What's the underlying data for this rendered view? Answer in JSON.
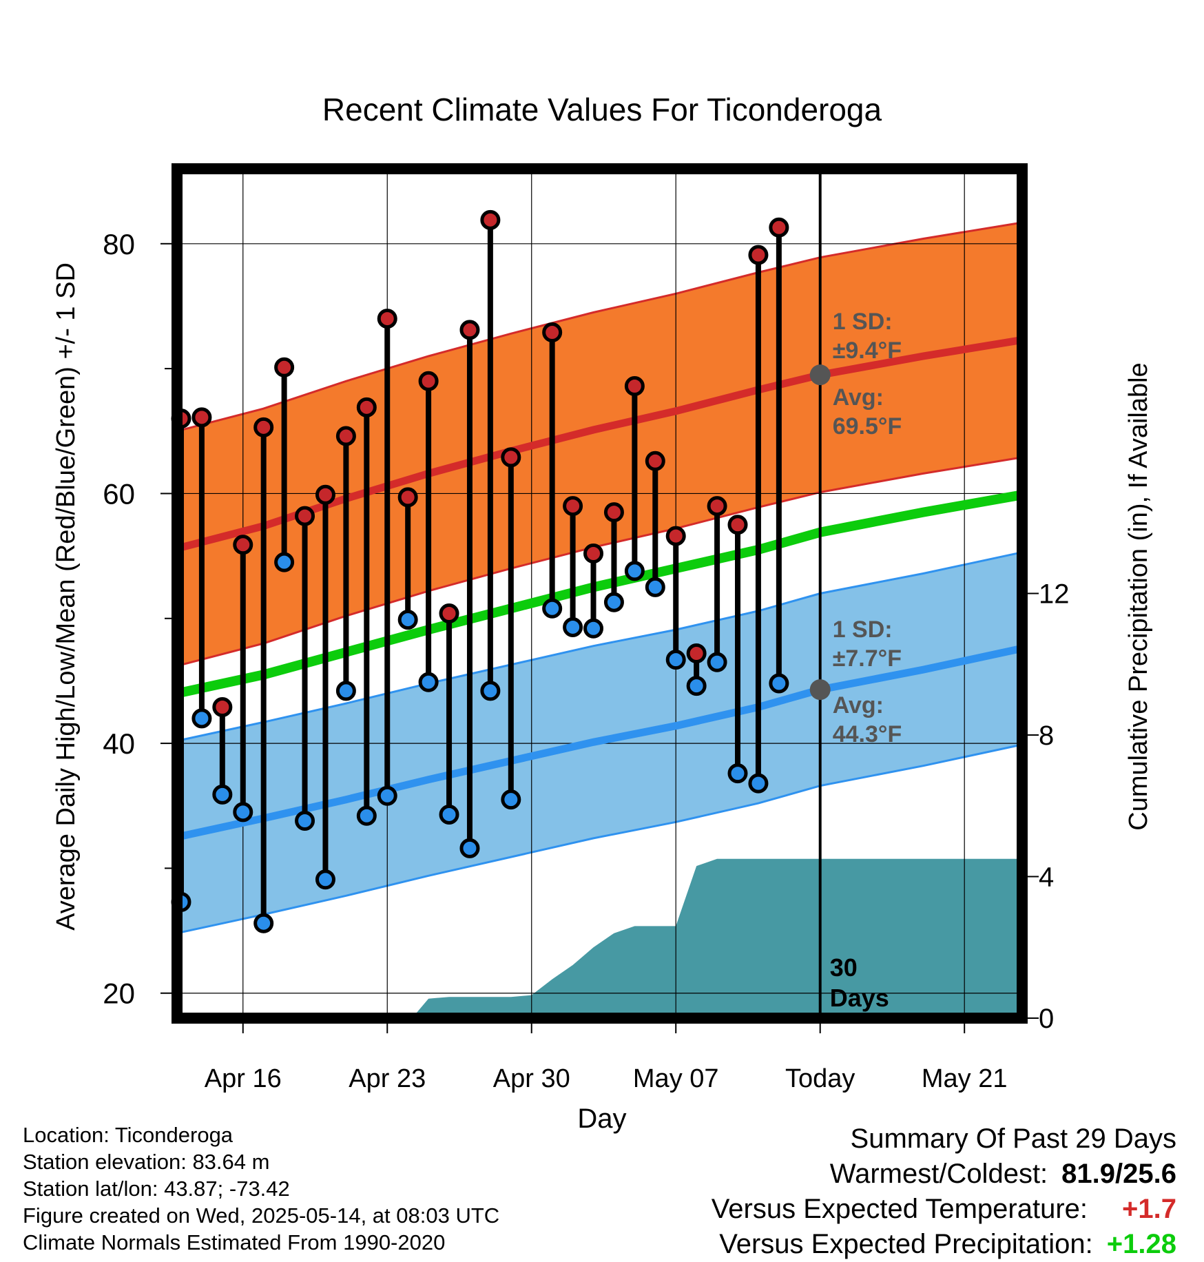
{
  "chart_data": {
    "type": "line",
    "title": "Recent Climate Values For Ticonderoga",
    "xlabel": "Day",
    "ylabel": "Average Daily High/Low/Mean (Red/Blue/Green) +/- 1 SD",
    "y2label": "Cumulative Precipitation (in), If Available",
    "ylim": [
      18,
      86
    ],
    "y2lim": [
      0,
      24
    ],
    "x_ticks": [
      {
        "day": 15,
        "label": "Apr 16"
      },
      {
        "day": 22,
        "label": "Apr 23"
      },
      {
        "day": 29,
        "label": "Apr 30"
      },
      {
        "day": 36,
        "label": "May 07"
      },
      {
        "day": 43,
        "label": "Today"
      },
      {
        "day": 50,
        "label": "May 21"
      }
    ],
    "y_ticks": [
      20,
      40,
      60,
      80
    ],
    "y2_ticks": [
      0,
      4,
      8,
      12
    ],
    "xlim_days": [
      11.8,
      52.8
    ],
    "today_day": 43,
    "today_label": [
      "30",
      "Days"
    ],
    "normal_high": {
      "avg": [
        [
          11.8,
          55.6
        ],
        [
          16,
          57.4
        ],
        [
          20,
          59.6
        ],
        [
          24,
          61.6
        ],
        [
          28,
          63.4
        ],
        [
          32,
          65.1
        ],
        [
          36,
          66.6
        ],
        [
          40,
          68.3
        ],
        [
          43,
          69.5
        ],
        [
          48,
          71.0
        ],
        [
          52.8,
          72.3
        ]
      ],
      "sd": 9.4
    },
    "normal_low": {
      "avg": [
        [
          11.8,
          32.5
        ],
        [
          16,
          34.0
        ],
        [
          20,
          35.5
        ],
        [
          24,
          37.1
        ],
        [
          28,
          38.6
        ],
        [
          32,
          40.1
        ],
        [
          36,
          41.4
        ],
        [
          40,
          42.9
        ],
        [
          43,
          44.3
        ],
        [
          48,
          45.9
        ],
        [
          52.8,
          47.6
        ]
      ],
      "sd": 7.7
    },
    "normal_mean": [
      [
        11.8,
        44.0
      ],
      [
        16,
        45.5
      ],
      [
        20,
        47.3
      ],
      [
        24,
        49.1
      ],
      [
        28,
        50.8
      ],
      [
        32,
        52.5
      ],
      [
        36,
        54.0
      ],
      [
        40,
        55.5
      ],
      [
        43,
        56.9
      ],
      [
        48,
        58.5
      ],
      [
        52.8,
        59.9
      ]
    ],
    "daily": [
      {
        "day": 12,
        "high": 66.0,
        "low": 27.3
      },
      {
        "day": 13,
        "high": 66.1,
        "low": 42.0
      },
      {
        "day": 14,
        "high": 42.9,
        "low": 35.9
      },
      {
        "day": 15,
        "high": 55.9,
        "low": 34.5
      },
      {
        "day": 16,
        "high": 65.3,
        "low": 25.6
      },
      {
        "day": 17,
        "high": 70.1,
        "low": 54.5
      },
      {
        "day": 18,
        "high": 58.2,
        "low": 33.8
      },
      {
        "day": 19,
        "high": 59.9,
        "low": 29.1
      },
      {
        "day": 20,
        "high": 64.6,
        "low": 44.2
      },
      {
        "day": 21,
        "high": 66.9,
        "low": 34.2
      },
      {
        "day": 22,
        "high": 74.0,
        "low": 35.8
      },
      {
        "day": 23,
        "high": 59.7,
        "low": 49.9
      },
      {
        "day": 24,
        "high": 69.0,
        "low": 44.9
      },
      {
        "day": 25,
        "high": 50.4,
        "low": 34.3
      },
      {
        "day": 26,
        "high": 73.1,
        "low": 31.6
      },
      {
        "day": 27,
        "high": 81.9,
        "low": 44.2
      },
      {
        "day": 28,
        "high": 62.9,
        "low": 35.5
      },
      {
        "day": 30,
        "high": 72.9,
        "low": 50.8
      },
      {
        "day": 31,
        "high": 59.0,
        "low": 49.3
      },
      {
        "day": 32,
        "high": 55.2,
        "low": 49.2
      },
      {
        "day": 33,
        "high": 58.5,
        "low": 51.3
      },
      {
        "day": 34,
        "high": 68.6,
        "low": 53.8
      },
      {
        "day": 35,
        "high": 62.6,
        "low": 52.5
      },
      {
        "day": 36,
        "high": 56.6,
        "low": 46.7
      },
      {
        "day": 37,
        "high": 47.2,
        "low": 44.6
      },
      {
        "day": 38,
        "high": 59.0,
        "low": 46.5
      },
      {
        "day": 39,
        "high": 57.5,
        "low": 37.6
      },
      {
        "day": 40,
        "high": 79.1,
        "low": 36.8
      },
      {
        "day": 41,
        "high": 81.3,
        "low": 44.8
      }
    ],
    "cumulative_precip": [
      [
        23.2,
        0
      ],
      [
        24,
        0.55
      ],
      [
        25,
        0.6
      ],
      [
        26,
        0.6
      ],
      [
        28,
        0.6
      ],
      [
        29,
        0.65
      ],
      [
        30,
        1.1
      ],
      [
        31,
        1.5
      ],
      [
        32,
        2.0
      ],
      [
        33,
        2.4
      ],
      [
        34,
        2.6
      ],
      [
        35,
        2.6
      ],
      [
        36,
        2.6
      ],
      [
        37,
        4.3
      ],
      [
        38,
        4.5
      ],
      [
        52.8,
        4.5
      ]
    ],
    "annotations": {
      "high_sd": [
        "1 SD:",
        "±9.4°F"
      ],
      "high_avg": [
        "Avg:",
        "69.5°F"
      ],
      "low_sd": [
        "1 SD:",
        "±7.7°F"
      ],
      "low_avg": [
        "Avg:",
        "44.3°F"
      ]
    },
    "colors": {
      "high_band": "#f47a2c",
      "high_line": "#d42b2a",
      "low_band": "#84c1e8",
      "low_line": "#2f92ef",
      "mean_line": "#0ccc0c",
      "precip_fill": "#4799a3",
      "high_marker": "#c5272b",
      "low_marker": "#2a8eea",
      "annotation_text": "#555555",
      "today_marker": "#555555"
    }
  },
  "info": {
    "location": "Location: Ticonderoga",
    "elevation": "Station elevation: 83.64 m",
    "latlon": "Station lat/lon: 43.87; -73.42",
    "created": "Figure created on Wed, 2025-05-14, at 08:03 UTC",
    "normals": "Climate Normals Estimated From 1990-2020"
  },
  "summary": {
    "heading": "Summary Of Past 29 Days",
    "warmest_coldest_label": "Warmest/Coldest:",
    "warmest_coldest_value": "81.9/25.6",
    "temp_label": "Versus Expected Temperature:",
    "temp_value": "+1.7",
    "temp_color": "#d42b2a",
    "precip_label": "Versus Expected Precipitation:",
    "precip_value": "+1.28",
    "precip_color": "#0ccc0c"
  }
}
